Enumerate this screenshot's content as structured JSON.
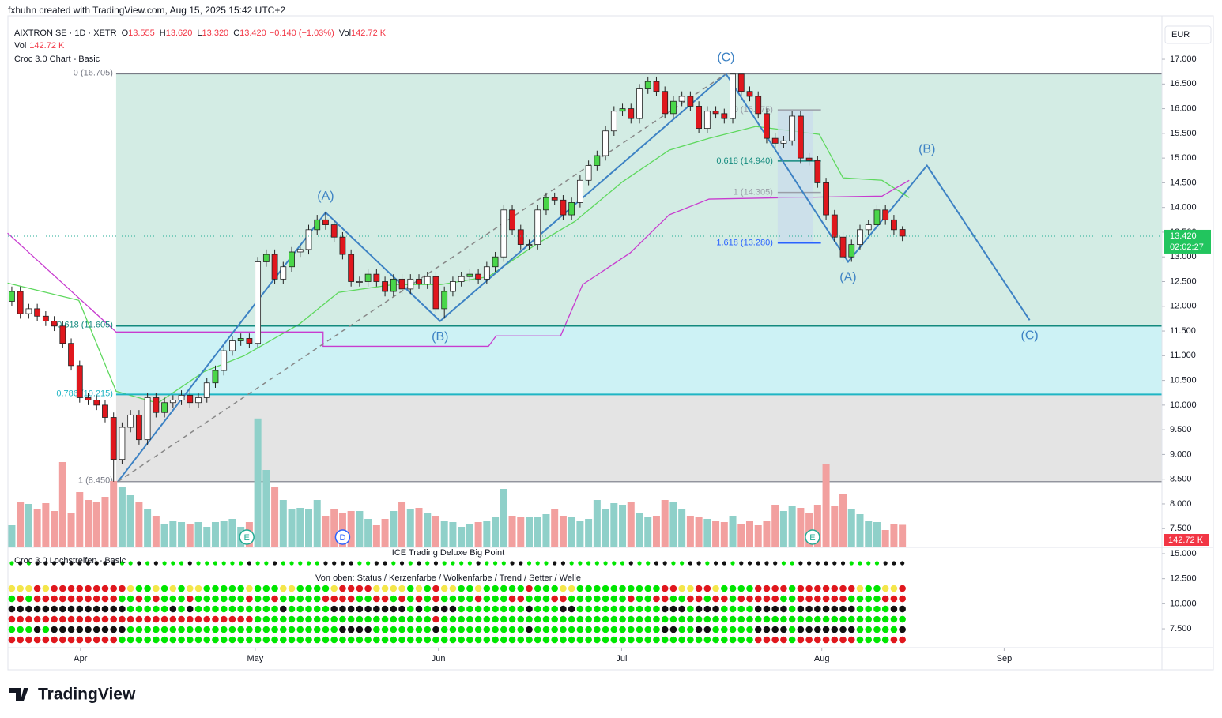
{
  "header": {
    "attribution": "fxhuhn created with TradingView.com, Aug 15, 2025 15:42 UTC+2",
    "symbol": "AIXTRON SE · 1D · XETR",
    "ohlc": [
      {
        "label": "O",
        "value": "13.555"
      },
      {
        "label": "H",
        "value": "13.620"
      },
      {
        "label": "L",
        "value": "13.320"
      },
      {
        "label": "C",
        "value": "13.420"
      }
    ],
    "change": "−0.140 (−1.03%)",
    "volume": {
      "label": "Vol",
      "value": "142.72 K"
    },
    "indicator": "Croc 3.0 Chart - Basic",
    "currency": "EUR",
    "last_price": "13.420",
    "countdown": "02:02:27",
    "last_volume": "142.72 K"
  },
  "panel": {
    "title": "ICE Trading Deluxe Big Point",
    "subtitle": "Croc 3.0 Lochstreifen - Basic",
    "legend": "Von oben: Status / Kerzenfarbe / Wolkenfarbe / Trend / Setter / Welle",
    "ylim": [
      5.61,
      15.63
    ],
    "yticks": [
      {
        "value": 15,
        "label": "15.000"
      },
      {
        "value": 12.5,
        "label": "12.500"
      },
      {
        "value": 10,
        "label": "10.000"
      },
      {
        "value": 7.5,
        "label": "7.500"
      }
    ]
  },
  "footer": {
    "brand": "TradingView"
  },
  "chart_data": {
    "type": "candlestick",
    "xlim": [
      -0.46,
      135.6
    ],
    "xticks": [
      {
        "value": 8.1,
        "label": "Apr"
      },
      {
        "value": 28.7,
        "label": "May"
      },
      {
        "value": 50.3,
        "label": "Jun"
      },
      {
        "value": 71.9,
        "label": "Jul"
      },
      {
        "value": 95.5,
        "label": "Aug"
      },
      {
        "value": 117,
        "label": "Sep"
      }
    ],
    "ylim": [
      7.12,
      17.88
    ],
    "yticks": [
      {
        "value": 17,
        "label": "17.000"
      },
      {
        "value": 16.5,
        "label": "16.500"
      },
      {
        "value": 16,
        "label": "16.000"
      },
      {
        "value": 15.5,
        "label": "15.500"
      },
      {
        "value": 15,
        "label": "15.000"
      },
      {
        "value": 14.5,
        "label": "14.500"
      },
      {
        "value": 14,
        "label": "14.000"
      },
      {
        "value": 13.5,
        "label": "13.500"
      },
      {
        "value": 13,
        "label": "13.000"
      },
      {
        "value": 12.5,
        "label": "12.500"
      },
      {
        "value": 12,
        "label": "12.000"
      },
      {
        "value": 11.5,
        "label": "11.500"
      },
      {
        "value": 11,
        "label": "11.000"
      },
      {
        "value": 10.5,
        "label": "10.500"
      },
      {
        "value": 10,
        "label": "10.000"
      },
      {
        "value": 9.5,
        "label": "9.500"
      },
      {
        "value": 9,
        "label": "9.000"
      },
      {
        "value": 8.5,
        "label": "8.500"
      },
      {
        "value": 8,
        "label": "8.000"
      },
      {
        "value": 7.5,
        "label": "7.500"
      }
    ],
    "last_close": 13.42,
    "open": [
      12.1,
      12.3,
      11.85,
      11.95,
      11.8,
      11.7,
      11.6,
      11.25,
      10.8,
      10.15,
      10.1,
      10.0,
      9.75,
      8.9,
      9.55,
      9.8,
      9.3,
      10.15,
      9.85,
      10.05,
      10.1,
      10.2,
      10.05,
      10.15,
      10.45,
      10.7,
      11.1,
      11.3,
      11.35,
      11.25,
      12.9,
      13.05,
      12.55,
      12.8,
      13.1,
      13.15,
      13.55,
      13.75,
      13.65,
      13.4,
      13.05,
      12.5,
      12.5,
      12.65,
      12.5,
      12.3,
      12.55,
      12.35,
      12.55,
      12.45,
      12.6,
      11.95,
      12.3,
      12.5,
      12.6,
      12.65,
      12.55,
      12.8,
      13.0,
      13.95,
      13.55,
      13.25,
      13.25,
      13.95,
      14.2,
      14.15,
      13.85,
      14.1,
      14.55,
      14.85,
      15.05,
      15.55,
      15.95,
      16.0,
      15.8,
      16.4,
      16.55,
      16.35,
      15.9,
      16.15,
      16.25,
      16.05,
      15.6,
      15.95,
      15.9,
      15.8,
      16.7,
      16.35,
      16.25,
      15.9,
      15.4,
      15.3,
      15.35,
      15.85,
      15.0,
      14.95,
      14.5,
      13.85,
      13.4,
      13.0,
      13.25,
      13.55,
      13.65,
      13.95,
      13.75,
      13.555
    ],
    "high": [
      12.4,
      12.4,
      12.05,
      12.05,
      11.9,
      11.8,
      11.7,
      11.35,
      10.9,
      10.25,
      10.2,
      10.1,
      9.85,
      9.65,
      9.9,
      9.9,
      10.25,
      10.25,
      10.15,
      10.2,
      10.3,
      10.3,
      10.25,
      10.55,
      10.8,
      11.2,
      11.4,
      11.45,
      11.45,
      13.0,
      13.15,
      13.15,
      12.9,
      13.2,
      13.25,
      13.65,
      13.85,
      13.9,
      13.75,
      13.5,
      13.15,
      12.6,
      12.75,
      12.75,
      12.6,
      12.65,
      12.65,
      12.65,
      12.65,
      12.7,
      12.7,
      12.4,
      12.6,
      12.7,
      12.75,
      12.75,
      12.9,
      13.1,
      14.05,
      14.05,
      13.65,
      13.35,
      14.05,
      14.3,
      14.3,
      14.25,
      14.2,
      14.65,
      14.95,
      15.15,
      15.65,
      16.05,
      16.1,
      16.1,
      16.5,
      16.65,
      16.65,
      16.45,
      16.25,
      16.35,
      16.35,
      16.15,
      16.05,
      16.05,
      16.0,
      16.705,
      16.7,
      16.45,
      16.35,
      16.0,
      15.5,
      15.45,
      15.95,
      15.95,
      15.1,
      15.05,
      14.6,
      13.95,
      13.5,
      13.35,
      13.65,
      13.75,
      14.05,
      14.05,
      13.85,
      13.62
    ],
    "low": [
      12.0,
      11.75,
      11.75,
      11.7,
      11.6,
      11.5,
      11.15,
      10.7,
      10.05,
      10.0,
      9.9,
      9.65,
      8.45,
      8.8,
      9.45,
      9.2,
      9.2,
      9.75,
      9.75,
      9.95,
      10.0,
      9.95,
      9.95,
      10.05,
      10.35,
      10.6,
      11.0,
      11.2,
      11.15,
      11.15,
      12.8,
      12.45,
      12.45,
      12.7,
      13.0,
      13.05,
      13.45,
      13.55,
      13.3,
      12.95,
      12.4,
      12.4,
      12.4,
      12.4,
      12.2,
      12.2,
      12.25,
      12.25,
      12.35,
      12.35,
      11.85,
      11.75,
      12.2,
      12.4,
      12.5,
      12.45,
      12.45,
      12.7,
      12.9,
      13.45,
      13.15,
      13.15,
      13.15,
      13.85,
      14.05,
      13.75,
      13.75,
      14.0,
      14.45,
      14.75,
      14.95,
      15.45,
      15.85,
      15.7,
      15.7,
      16.3,
      16.25,
      15.8,
      15.8,
      16.05,
      15.95,
      15.5,
      15.5,
      15.8,
      15.7,
      15.7,
      16.25,
      16.15,
      15.8,
      15.3,
      15.2,
      15.2,
      15.25,
      14.9,
      14.85,
      14.4,
      13.75,
      13.3,
      12.9,
      12.9,
      13.15,
      13.45,
      13.55,
      13.65,
      13.45,
      13.32
    ],
    "close": [
      12.3,
      11.85,
      11.95,
      11.8,
      11.7,
      11.6,
      11.25,
      10.8,
      10.15,
      10.1,
      10.0,
      9.75,
      8.9,
      9.55,
      9.8,
      9.3,
      10.15,
      9.85,
      10.05,
      10.1,
      10.2,
      10.05,
      10.15,
      10.45,
      10.7,
      11.1,
      11.3,
      11.35,
      11.25,
      12.9,
      13.05,
      12.55,
      12.8,
      13.1,
      13.15,
      13.55,
      13.75,
      13.65,
      13.4,
      13.05,
      12.5,
      12.5,
      12.65,
      12.5,
      12.3,
      12.55,
      12.35,
      12.55,
      12.45,
      12.6,
      11.95,
      12.3,
      12.5,
      12.6,
      12.65,
      12.55,
      12.8,
      13.0,
      13.95,
      13.55,
      13.25,
      13.25,
      13.95,
      14.2,
      14.15,
      13.85,
      14.1,
      14.55,
      14.85,
      15.05,
      15.55,
      15.95,
      16.0,
      15.8,
      16.4,
      16.55,
      16.35,
      15.9,
      16.15,
      16.25,
      16.05,
      15.6,
      15.95,
      15.9,
      15.8,
      16.7,
      16.35,
      16.25,
      15.9,
      15.4,
      15.3,
      15.35,
      15.85,
      15.0,
      14.95,
      14.5,
      13.85,
      13.4,
      13.0,
      13.25,
      13.55,
      13.65,
      13.95,
      13.75,
      13.55,
      13.42
    ],
    "volume": [
      140,
      290,
      275,
      240,
      280,
      230,
      540,
      220,
      350,
      300,
      290,
      320,
      420,
      380,
      330,
      290,
      240,
      200,
      150,
      170,
      160,
      150,
      160,
      130,
      160,
      170,
      180,
      130,
      160,
      816,
      490,
      380,
      300,
      240,
      250,
      240,
      300,
      200,
      240,
      220,
      230,
      230,
      180,
      140,
      180,
      230,
      290,
      240,
      250,
      220,
      200,
      170,
      160,
      130,
      150,
      160,
      170,
      190,
      370,
      200,
      190,
      190,
      190,
      210,
      240,
      200,
      190,
      170,
      180,
      300,
      240,
      280,
      270,
      290,
      220,
      190,
      200,
      300,
      290,
      240,
      200,
      190,
      180,
      170,
      160,
      200,
      150,
      170,
      140,
      170,
      270,
      230,
      260,
      250,
      220,
      270,
      525,
      260,
      340,
      240,
      210,
      170,
      160,
      110,
      150,
      142.72
    ],
    "overlays": [
      {
        "color": "#5ed85e",
        "x": [
          -0.5,
          7.9,
          12.3,
          17.2,
          22.7,
          27.4,
          33.9,
          38.5,
          45.0,
          50.6,
          56.2,
          61.7,
          66.4,
          72.0,
          77.5,
          82.2,
          87.7,
          91.5,
          95.2,
          98.0,
          102.6,
          105.8
        ],
        "values": [
          12.47,
          12.12,
          10.28,
          10.04,
          10.68,
          11.0,
          11.64,
          12.28,
          12.44,
          12.44,
          12.6,
          13.24,
          13.72,
          14.52,
          15.16,
          15.4,
          15.64,
          15.56,
          15.48,
          14.6,
          14.55,
          14.2
        ]
      },
      {
        "color": "#c83ccf",
        "x": [
          -0.5,
          12.3,
          36.7,
          36.7,
          56.2,
          57.1,
          64.7,
          67.3,
          72.9,
          77.5,
          82.2,
          91.5,
          102.6,
          105.8
        ],
        "values": [
          13.48,
          11.48,
          11.48,
          11.19,
          11.19,
          11.4,
          11.4,
          12.44,
          13.08,
          13.85,
          14.17,
          14.2,
          14.23,
          14.55
        ]
      }
    ],
    "fib": {
      "start": 12.3,
      "levels": [
        {
          "label": "0 (16.705)",
          "value": 16.705,
          "color": "#787b86"
        },
        {
          "label": "0.618 (11.605)",
          "value": 11.605,
          "color": "#138a7e"
        },
        {
          "label": "0.786 (10.215)",
          "value": 10.215,
          "color": "#1fb5c4"
        },
        {
          "label": "1 (8.450)",
          "value": 8.45,
          "color": "#787b86"
        }
      ],
      "zones": [
        {
          "from": 16.705,
          "to": 11.605,
          "color": "#d3ece4"
        },
        {
          "from": 11.605,
          "to": 10.215,
          "color": "#cdf2f5"
        },
        {
          "from": 10.215,
          "to": 8.45,
          "color": "#e4e4e4"
        }
      ]
    },
    "fib2": {
      "start": 90.3,
      "end": 95.4,
      "levels": [
        {
          "label": "0 (15.975)",
          "value": 15.975,
          "color": "#9a9ea8"
        },
        {
          "label": "0.618 (14.940)",
          "value": 14.94,
          "color": "#138a7e"
        },
        {
          "label": "1 (14.305)",
          "value": 14.305,
          "color": "#9a9ea8"
        },
        {
          "label": "1.618 (13.280)",
          "value": 13.28,
          "color": "#2962ff"
        }
      ]
    },
    "waves": [
      {
        "x": [
          12.5,
          37,
          50.5,
          84.2
        ],
        "values": [
          8.45,
          13.9,
          11.7,
          16.705
        ],
        "labels": [
          null,
          "(A)",
          "(B)",
          "(C)"
        ],
        "dashed": false
      },
      {
        "x": [
          84.2,
          98.6,
          107.9,
          120
        ],
        "values": [
          16.705,
          12.9,
          14.85,
          11.72
        ],
        "labels": [
          null,
          "(A)",
          "(B)",
          "(C)"
        ],
        "dashed": false
      },
      {
        "x": [
          12.5,
          84.2
        ],
        "values": [
          8.45,
          16.705
        ],
        "labels": [
          null,
          null
        ],
        "dashed": true
      }
    ],
    "events": [
      {
        "label": "E",
        "x": 27.7
      },
      {
        "label": "D",
        "x": 39
      },
      {
        "label": "E",
        "x": 94.4
      }
    ]
  }
}
